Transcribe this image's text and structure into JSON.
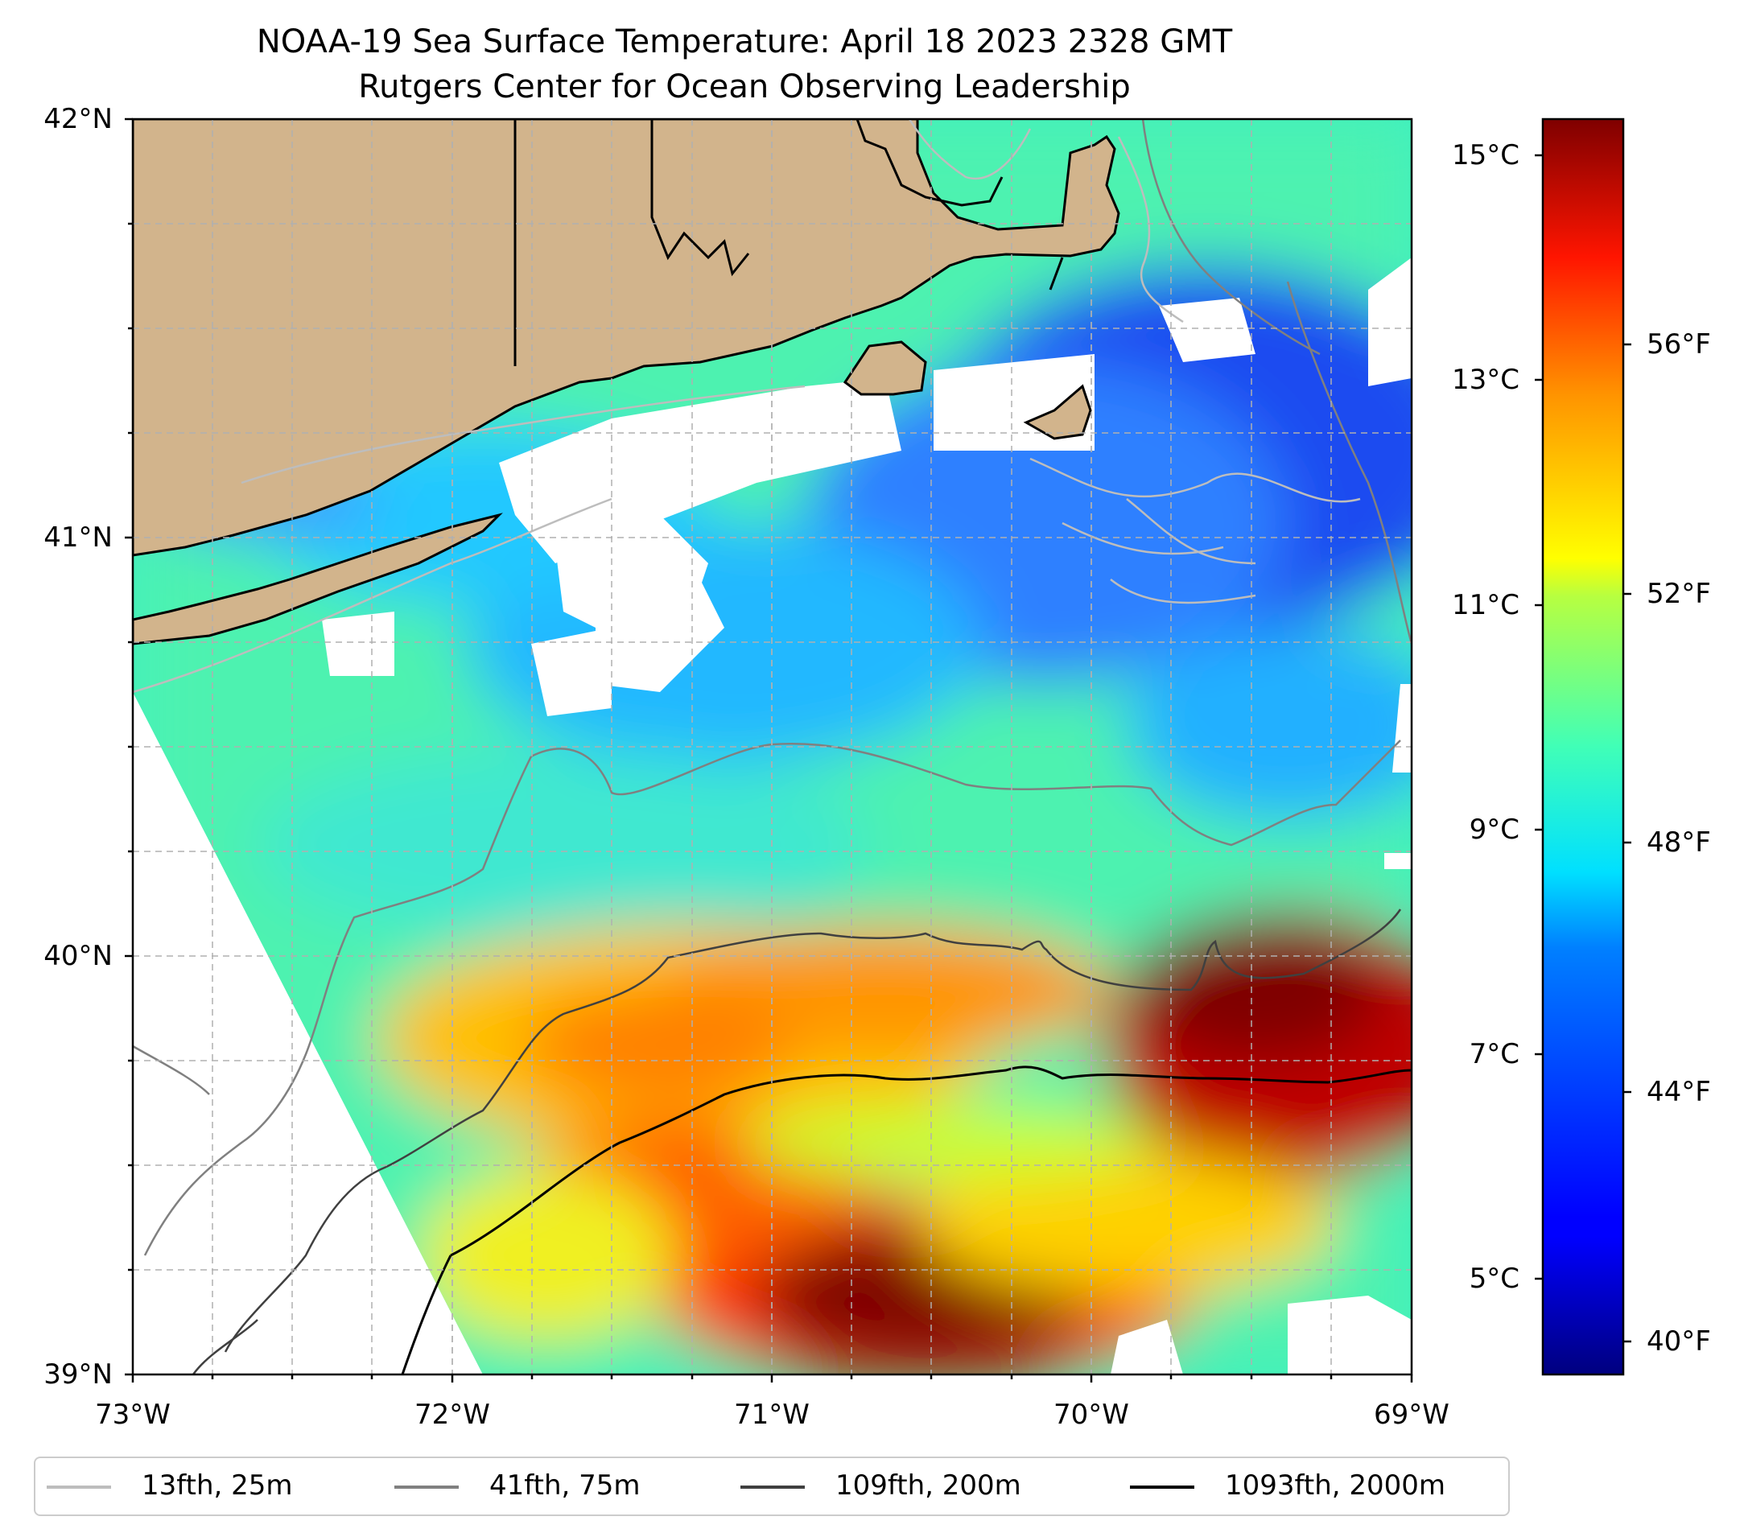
{
  "title": {
    "line1": "NOAA-19 Sea Surface Temperature: April 18 2023 2328 GMT",
    "line2": "Rutgers Center for Ocean Observing Leadership"
  },
  "axes": {
    "lat_labels": [
      "42°N",
      "41°N",
      "40°N",
      "39°N"
    ],
    "lon_labels": [
      "73°W",
      "72°W",
      "71°W",
      "70°W",
      "69°W"
    ],
    "lat_range": [
      39,
      42
    ],
    "lon_range": [
      -73,
      -69
    ]
  },
  "colorbar": {
    "colormap": "jet",
    "celsius_labels": [
      "15°C",
      "13°C",
      "11°C",
      "9°C",
      "7°C",
      "5°C"
    ],
    "fahrenheit_labels": [
      "56°F",
      "52°F",
      "48°F",
      "44°F",
      "40°F"
    ],
    "range_c": [
      4.3,
      15.3
    ]
  },
  "colors": {
    "land": "#d2b48c",
    "missing_data": "#ffffff",
    "grid": "#b0b0b0"
  },
  "legend": {
    "items": [
      {
        "label": "13fth, 25m",
        "color": "#bdbdbd"
      },
      {
        "label": "41fth, 75m",
        "color": "#808080"
      },
      {
        "label": "109fth, 200m",
        "color": "#404040"
      },
      {
        "label": "1093fth, 2000m",
        "color": "#000000"
      }
    ]
  }
}
